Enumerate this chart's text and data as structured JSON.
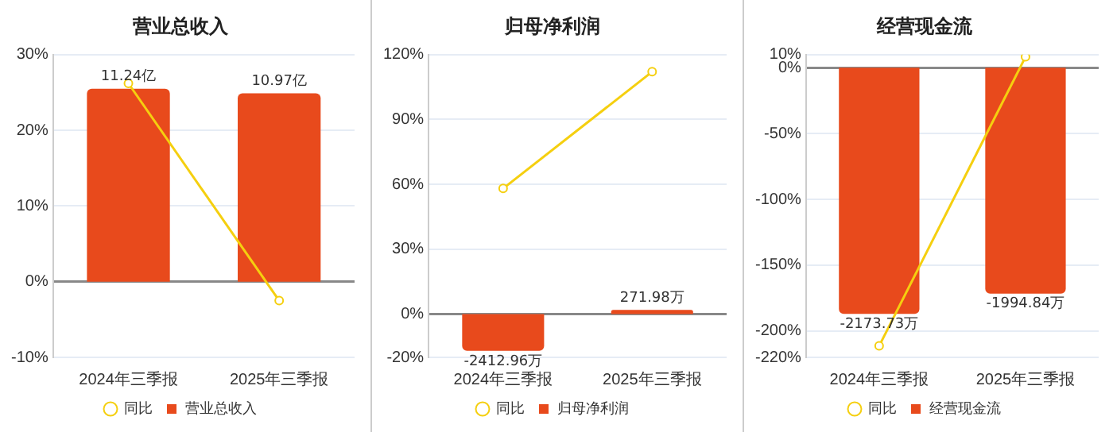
{
  "chart_data": [
    {
      "type": "bar",
      "title": "营业总收入",
      "categories": [
        "2024年三季报",
        "2025年三季报"
      ],
      "series": [
        {
          "name": "营业总收入",
          "color": "#e84a1c",
          "values": [
            11.24,
            10.97
          ],
          "value_labels": [
            "11.24亿",
            "10.97亿"
          ],
          "axis": "y2"
        },
        {
          "name": "同比",
          "type": "line",
          "color": "#f5cf0f",
          "values": [
            26.2,
            -2.5
          ],
          "marker": "circle"
        }
      ],
      "ylim": [
        -10,
        30
      ],
      "yticks": [
        {
          "value": -10,
          "label": "-10%"
        },
        {
          "value": 0,
          "label": "0%"
        },
        {
          "value": 10,
          "label": "10%"
        },
        {
          "value": 20,
          "label": "20%"
        },
        {
          "value": 30,
          "label": "30%"
        }
      ],
      "grid": "y",
      "legend": "bottom"
    },
    {
      "type": "bar",
      "title": "归母净利润",
      "categories": [
        "2024年三季报",
        "2025年三季报"
      ],
      "series": [
        {
          "name": "归母净利润",
          "color": "#e84a1c",
          "values": [
            -2412.96,
            271.98
          ],
          "value_labels": [
            "-2412.96万",
            "271.98万"
          ],
          "axis": "y2"
        },
        {
          "name": "同比",
          "type": "line",
          "color": "#f5cf0f",
          "values": [
            58.1,
            112.1
          ],
          "marker": "circle"
        }
      ],
      "ylim": [
        -20,
        120
      ],
      "yticks": [
        {
          "value": -20,
          "label": "-20%"
        },
        {
          "value": 0,
          "label": "0%"
        },
        {
          "value": 30,
          "label": "30%"
        },
        {
          "value": 60,
          "label": "60%"
        },
        {
          "value": 90,
          "label": "90%"
        },
        {
          "value": 120,
          "label": "120%"
        }
      ],
      "grid": "y",
      "legend": "bottom"
    },
    {
      "type": "bar",
      "title": "经营现金流",
      "categories": [
        "2024年三季报",
        "2025年三季报"
      ],
      "series": [
        {
          "name": "经营现金流",
          "color": "#e84a1c",
          "values": [
            -2173.73,
            -1994.84
          ],
          "value_labels": [
            "-2173.73万",
            "-1994.84万"
          ],
          "axis": "y2"
        },
        {
          "name": "同比",
          "type": "line",
          "color": "#f5cf0f",
          "values": [
            -211.3,
            8.3
          ],
          "marker": "circle"
        }
      ],
      "ylim": [
        -220,
        10
      ],
      "yticks": [
        {
          "value": -220,
          "label": "-220%"
        },
        {
          "value": -200,
          "label": "-200%"
        },
        {
          "value": -150,
          "label": "-150%"
        },
        {
          "value": -100,
          "label": "-100%"
        },
        {
          "value": -50,
          "label": "-50%"
        },
        {
          "value": 0,
          "label": "0%"
        },
        {
          "value": 10,
          "label": "10%"
        }
      ],
      "grid": "y",
      "legend": "bottom"
    }
  ]
}
